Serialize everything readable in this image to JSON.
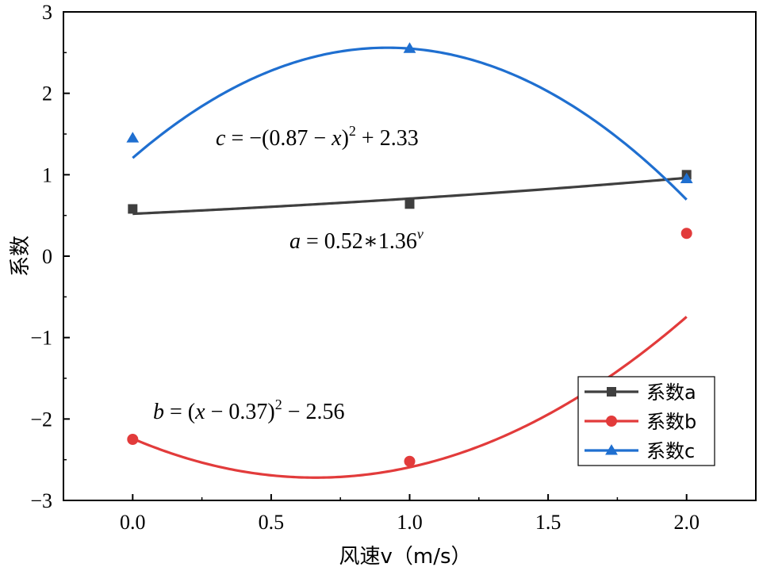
{
  "chart_data": {
    "type": "line",
    "xlabel": "风速v（m/s）",
    "ylabel": "系数",
    "xlim": [
      -0.25,
      2.25
    ],
    "ylim": [
      -3,
      3
    ],
    "x_ticks": [
      "0.0",
      "0.5",
      "1.0",
      "1.5",
      "2.0"
    ],
    "y_ticks": [
      "−3",
      "−2",
      "−1",
      "0",
      "1",
      "2",
      "3"
    ],
    "grid": false,
    "legend_position": "bottom-right",
    "series": [
      {
        "name": "系数a",
        "x": [
          0,
          1,
          2
        ],
        "y": [
          0.58,
          0.64,
          1.0
        ],
        "color": "#3f3f3f",
        "marker": "square",
        "curve": "exp",
        "params": [
          0.52,
          1.36
        ]
      },
      {
        "name": "系数b",
        "x": [
          0,
          1,
          2
        ],
        "y": [
          -2.25,
          -2.52,
          0.28
        ],
        "color": "#e23b3b",
        "marker": "circle",
        "curve": "quad",
        "params": [
          1.1,
          0.66,
          -2.72
        ]
      },
      {
        "name": "系数c",
        "x": [
          0,
          1,
          2
        ],
        "y": [
          1.45,
          2.55,
          0.95
        ],
        "color": "#1f6fd0",
        "marker": "triangle",
        "curve": "quad",
        "params": [
          -1.6,
          0.92,
          2.56
        ]
      }
    ],
    "annotations": {
      "c_eq": {
        "lhs": "c",
        "mid": " = −(0.87 − ",
        "var": "x",
        "rhs": ")",
        "exp": "2",
        "tail": " + 2.33"
      },
      "a_eq": {
        "lhs": "a",
        "mid": " = 0.52∗1.36",
        "exp": "v"
      },
      "b_eq": {
        "lhs": "b",
        "mid": " = (",
        "var": "x",
        "rhs": " − 0.37)",
        "exp": "2",
        "tail": " − 2.56"
      }
    }
  }
}
